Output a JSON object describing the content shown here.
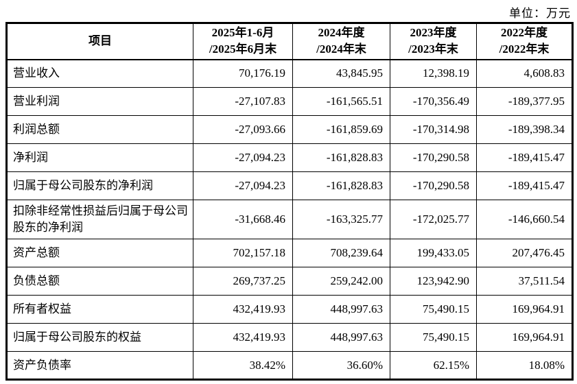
{
  "unit_label": "单位：万元",
  "table": {
    "header": {
      "item_label": "项目",
      "periods": [
        {
          "line1": "2025年1-6月",
          "line2": "/2025年6月末"
        },
        {
          "line1": "2024年度",
          "line2": "/2024年末"
        },
        {
          "line1": "2023年度",
          "line2": "/2023年末"
        },
        {
          "line1": "2022年度",
          "line2": "/2022年末"
        }
      ]
    },
    "rows": [
      {
        "label": "营业收入",
        "values": [
          "70,176.19",
          "43,845.95",
          "12,398.19",
          "4,608.83"
        ],
        "tall": false
      },
      {
        "label": "营业利润",
        "values": [
          "-27,107.83",
          "-161,565.51",
          "-170,356.49",
          "-189,377.95"
        ],
        "tall": false
      },
      {
        "label": "利润总额",
        "values": [
          "-27,093.66",
          "-161,859.69",
          "-170,314.98",
          "-189,398.34"
        ],
        "tall": false
      },
      {
        "label": "净利润",
        "values": [
          "-27,094.23",
          "-161,828.83",
          "-170,290.58",
          "-189,415.47"
        ],
        "tall": false
      },
      {
        "label": "归属于母公司股东的净利润",
        "values": [
          "-27,094.23",
          "-161,828.83",
          "-170,290.58",
          "-189,415.47"
        ],
        "tall": false
      },
      {
        "label": "扣除非经常性损益后归属于母公司股东的净利润",
        "values": [
          "-31,668.46",
          "-163,325.77",
          "-172,025.77",
          "-146,660.54"
        ],
        "tall": true
      },
      {
        "label": "资产总额",
        "values": [
          "702,157.18",
          "708,239.64",
          "199,433.05",
          "207,476.45"
        ],
        "tall": false
      },
      {
        "label": "负债总额",
        "values": [
          "269,737.25",
          "259,242.00",
          "123,942.90",
          "37,511.54"
        ],
        "tall": false
      },
      {
        "label": "所有者权益",
        "values": [
          "432,419.93",
          "448,997.63",
          "75,490.15",
          "169,964.91"
        ],
        "tall": false
      },
      {
        "label": "归属于母公司股东的权益",
        "values": [
          "432,419.93",
          "448,997.63",
          "75,490.15",
          "169,964.91"
        ],
        "tall": false
      },
      {
        "label": "资产负债率",
        "values": [
          "38.42%",
          "36.60%",
          "62.15%",
          "18.08%"
        ],
        "tall": false
      }
    ]
  }
}
